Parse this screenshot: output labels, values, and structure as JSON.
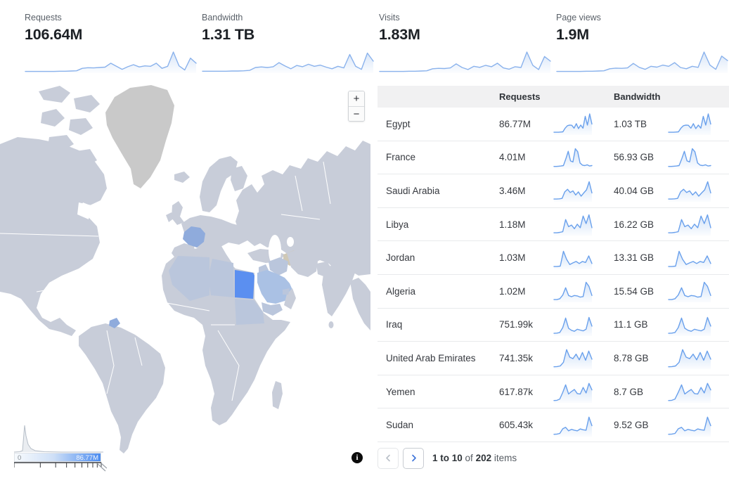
{
  "stats": [
    {
      "label": "Requests",
      "value": "106.64M",
      "spark": [
        0.05,
        0.05,
        0.05,
        0.05,
        0.05,
        0.05,
        0.06,
        0.06,
        0.07,
        0.08,
        0.2,
        0.23,
        0.22,
        0.24,
        0.26,
        0.45,
        0.3,
        0.15,
        0.28,
        0.38,
        0.27,
        0.32,
        0.3,
        0.45,
        0.2,
        0.3,
        1.0,
        0.32,
        0.12,
        0.7,
        0.45
      ]
    },
    {
      "label": "Bandwidth",
      "value": "1.31 TB",
      "spark": [
        0.06,
        0.06,
        0.06,
        0.06,
        0.06,
        0.07,
        0.07,
        0.08,
        0.1,
        0.24,
        0.27,
        0.24,
        0.28,
        0.48,
        0.32,
        0.18,
        0.34,
        0.28,
        0.4,
        0.3,
        0.36,
        0.26,
        0.18,
        0.3,
        0.22,
        0.88,
        0.3,
        0.15,
        0.95,
        0.55
      ]
    },
    {
      "label": "Visits",
      "value": "1.83M",
      "spark": [
        0.05,
        0.05,
        0.05,
        0.05,
        0.05,
        0.06,
        0.06,
        0.07,
        0.08,
        0.18,
        0.2,
        0.19,
        0.22,
        0.42,
        0.24,
        0.14,
        0.3,
        0.25,
        0.35,
        0.28,
        0.45,
        0.22,
        0.16,
        0.28,
        0.24,
        1.0,
        0.35,
        0.14,
        0.78,
        0.55
      ]
    },
    {
      "label": "Page views",
      "value": "1.9M",
      "spark": [
        0.05,
        0.05,
        0.05,
        0.05,
        0.05,
        0.06,
        0.06,
        0.07,
        0.08,
        0.18,
        0.21,
        0.2,
        0.22,
        0.44,
        0.25,
        0.15,
        0.3,
        0.26,
        0.36,
        0.3,
        0.48,
        0.24,
        0.18,
        0.3,
        0.25,
        1.0,
        0.36,
        0.15,
        0.8,
        0.58
      ]
    }
  ],
  "map": {
    "zoom_in": "+",
    "zoom_out": "−",
    "legend": {
      "min": "0",
      "max": "86.77M"
    },
    "colors": {
      "land": "#c8cdd9",
      "no_data": "#c9c9c9",
      "region": "#bac6dc",
      "egypt": "#5b8ff0",
      "france": "#8fabdc",
      "saudi": "#aac1e4",
      "tan": "#cfc8b6",
      "legend_max": "#4a8bf0"
    }
  },
  "table": {
    "col_requests": "Requests",
    "col_bandwidth": "Bandwidth",
    "rows": [
      {
        "country": "Egypt",
        "requests": "86.77M",
        "bandwidth": "1.03 TB",
        "spark": [
          0.1,
          0.1,
          0.1,
          0.11,
          0.12,
          0.3,
          0.42,
          0.45,
          0.44,
          0.3,
          0.52,
          0.28,
          0.45,
          0.3,
          0.88,
          0.45,
          1.0,
          0.5
        ]
      },
      {
        "country": "France",
        "requests": "4.01M",
        "bandwidth": "56.93 GB",
        "spark": [
          0.08,
          0.08,
          0.09,
          0.1,
          0.12,
          0.45,
          0.82,
          0.35,
          0.3,
          0.95,
          0.8,
          0.25,
          0.14,
          0.12,
          0.16,
          0.1,
          0.12
        ]
      },
      {
        "country": "Saudi Arabia",
        "requests": "3.46M",
        "bandwidth": "40.04 GB",
        "spark": [
          0.1,
          0.1,
          0.11,
          0.13,
          0.45,
          0.58,
          0.42,
          0.5,
          0.3,
          0.45,
          0.24,
          0.4,
          0.55,
          0.95,
          0.4
        ]
      },
      {
        "country": "Libya",
        "requests": "1.18M",
        "bandwidth": "16.22 GB",
        "spark": [
          0.1,
          0.1,
          0.12,
          0.15,
          0.75,
          0.4,
          0.48,
          0.3,
          0.52,
          0.35,
          0.92,
          0.55,
          0.98,
          0.35
        ]
      },
      {
        "country": "Jordan",
        "requests": "1.03M",
        "bandwidth": "13.31 GB",
        "spark": [
          0.1,
          0.1,
          0.12,
          0.85,
          0.45,
          0.2,
          0.28,
          0.35,
          0.25,
          0.35,
          0.3,
          0.62,
          0.25
        ]
      },
      {
        "country": "Algeria",
        "requests": "1.02M",
        "bandwidth": "15.54 GB",
        "spark": [
          0.1,
          0.1,
          0.14,
          0.32,
          0.68,
          0.3,
          0.24,
          0.3,
          0.28,
          0.22,
          0.25,
          0.95,
          0.75,
          0.3
        ]
      },
      {
        "country": "Iraq",
        "requests": "751.99k",
        "bandwidth": "11.1 GB",
        "spark": [
          0.1,
          0.11,
          0.14,
          0.38,
          0.85,
          0.35,
          0.25,
          0.2,
          0.3,
          0.26,
          0.22,
          0.3,
          0.88,
          0.45
        ]
      },
      {
        "country": "United Arab Emirates",
        "requests": "741.35k",
        "bandwidth": "8.78 GB",
        "spark": [
          0.08,
          0.09,
          0.12,
          0.3,
          0.92,
          0.55,
          0.48,
          0.7,
          0.42,
          0.78,
          0.4,
          0.85,
          0.45
        ]
      },
      {
        "country": "Yemen",
        "requests": "617.87k",
        "bandwidth": "8.7 GB",
        "spark": [
          0.08,
          0.09,
          0.15,
          0.48,
          0.85,
          0.4,
          0.52,
          0.62,
          0.42,
          0.4,
          0.72,
          0.45,
          0.92,
          0.6
        ]
      },
      {
        "country": "Sudan",
        "requests": "605.43k",
        "bandwidth": "9.52 GB",
        "spark": [
          0.08,
          0.09,
          0.12,
          0.35,
          0.42,
          0.25,
          0.32,
          0.28,
          0.25,
          0.34,
          0.3,
          0.28,
          0.92,
          0.5
        ]
      }
    ]
  },
  "pagination": {
    "range": "1 to 10",
    "of": "of",
    "total": "202",
    "items": "items"
  },
  "info": {
    "glyph": "i"
  },
  "colors": {
    "spark_top_stroke": "#8ab2ec",
    "spark_top_fill": "#a9c7f0",
    "spark_table_stroke": "#69a0ec",
    "spark_table_fill": "#9cc0f0",
    "accent_blue": "#3b72d9",
    "prev_chevron": "#b9bfc7"
  }
}
